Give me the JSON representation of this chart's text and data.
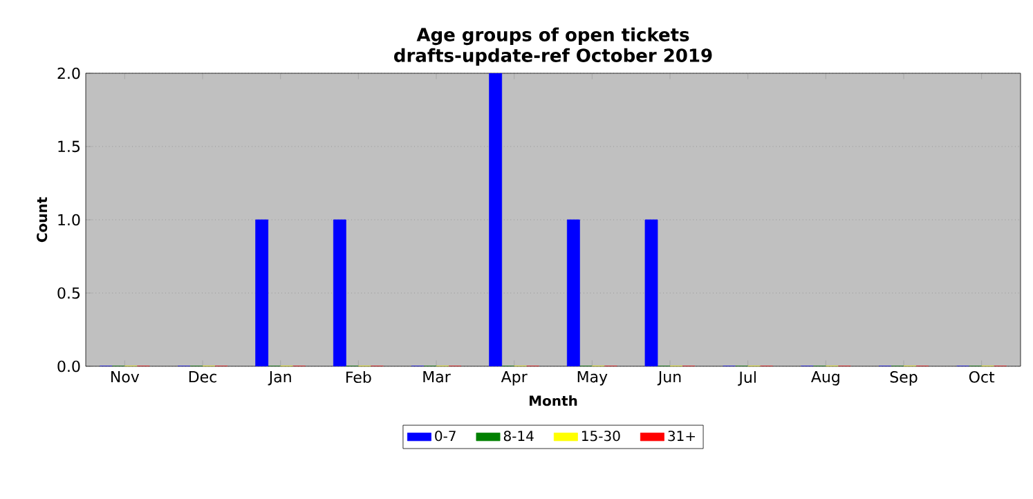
{
  "chart_data": {
    "type": "bar",
    "title": "Age groups of open tickets",
    "subtitle": "drafts-update-ref October 2019",
    "xlabel": "Month",
    "ylabel": "Count",
    "categories": [
      "Nov",
      "Dec",
      "Jan",
      "Feb",
      "Mar",
      "Apr",
      "May",
      "Jun",
      "Jul",
      "Aug",
      "Sep",
      "Oct"
    ],
    "series": [
      {
        "name": "0-7",
        "color": "#0000ff",
        "values": [
          0,
          0,
          1,
          1,
          0,
          2,
          1,
          1,
          0,
          0,
          0,
          0
        ]
      },
      {
        "name": "8-14",
        "color": "#008000",
        "values": [
          0,
          0,
          0,
          0,
          0,
          0,
          0,
          0,
          0,
          0,
          0,
          0
        ]
      },
      {
        "name": "15-30",
        "color": "#ffff00",
        "values": [
          0,
          0,
          0,
          0,
          0,
          0,
          0,
          0,
          0,
          0,
          0,
          0
        ]
      },
      {
        "name": "31+",
        "color": "#ff0000",
        "values": [
          0,
          0,
          0,
          0,
          0,
          0,
          0,
          0,
          0,
          0,
          0,
          0
        ]
      }
    ],
    "ylim": [
      0,
      2
    ],
    "yticks": [
      {
        "value": 0,
        "label": "0.0"
      },
      {
        "value": 0.5,
        "label": "0.5"
      },
      {
        "value": 1,
        "label": "1.0"
      },
      {
        "value": 1.5,
        "label": "1.5"
      },
      {
        "value": 2,
        "label": "2.0"
      }
    ],
    "grid": "y",
    "legend": "bottom"
  }
}
